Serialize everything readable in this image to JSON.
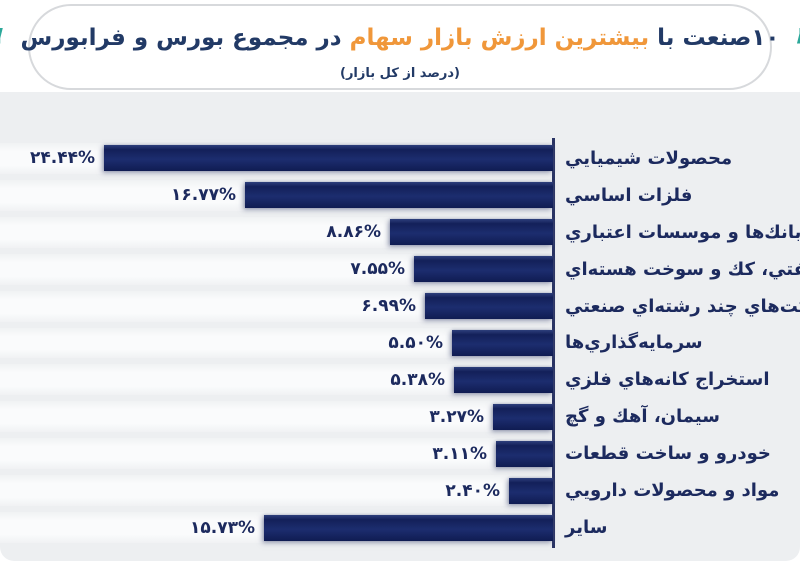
{
  "header": {
    "title_part1": "۱۰صنعت با ",
    "title_highlight": "بیشترین ارزش بازار سهام",
    "title_part2": " در مجموع بورس و فرابورس",
    "subtitle": "(درصد از کل بازار)",
    "open_quote": "“",
    "close_quote": "”"
  },
  "colors": {
    "bar_navy": "#1a2a6c",
    "title_navy": "#223a66",
    "title_orange": "#f0973a",
    "quote_teal": "#2ca89a",
    "chart_background": "#edeff1"
  },
  "chart_data": {
    "type": "bar",
    "orientation": "horizontal",
    "text_direction": "rtl",
    "title": "۱۰صنعت با بیشترین ارزش بازار سهام در مجموع بورس و فرابورس",
    "subtitle": "(درصد از کل بازار)",
    "legend": false,
    "grid": false,
    "xlim": [
      0,
      24.44
    ],
    "categories": [
      "محصولات شيميايي",
      "فلزات اساسي",
      "بانك‌ها و موسسات اعتباري",
      "رده‌هاي نفتي، كك و سوخت هسته‌اي",
      "شركت‌هاي چند رشته‌اي صنعتي",
      "سرمايه‌گذاري‌ها",
      "استخراج كانه‌هاي فلزي",
      "سيمان، آهك و گچ",
      "خودرو و ساخت قطعات",
      "مواد و محصولات دارويي",
      "ساير"
    ],
    "values": [
      24.44,
      16.77,
      8.86,
      7.55,
      6.99,
      5.5,
      5.38,
      3.27,
      3.11,
      2.4,
      15.73
    ],
    "value_labels": [
      "۲۴.۴۴%",
      "۱۶.۷۷%",
      "۸.۸۶%",
      "۷.۵۵%",
      "۶.۹۹%",
      "۵.۵۰%",
      "۵.۳۸%",
      "۳.۲۷%",
      "۳.۱۱%",
      "۲.۴۰%",
      "۱۵.۷۳%"
    ]
  }
}
